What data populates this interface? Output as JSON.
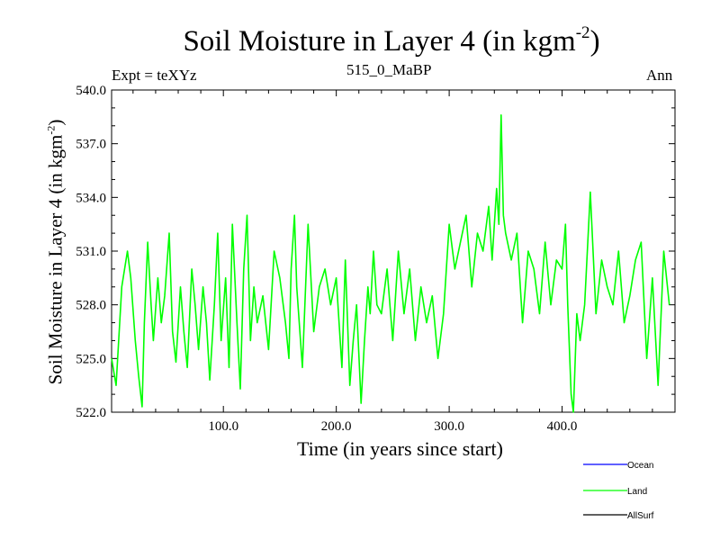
{
  "header": {
    "title_main": "Soil Moisture in Layer 4 (in kgm",
    "title_sup": "-2",
    "title_close": ")",
    "expt": "Expt = teXYz",
    "subtitle": "515_0_MaBP",
    "season": "Ann"
  },
  "chart_data": {
    "type": "line",
    "title": "Soil Moisture in Layer 4 (in kgm-2)",
    "xlabel": "Time (in years since start)",
    "ylabel": "Soil Moisture in Layer 4 (in kgm-2)",
    "xlim": [
      1,
      500
    ],
    "ylim": [
      522.0,
      540.0
    ],
    "x_ticks": [
      100,
      200,
      300,
      400
    ],
    "x_tick_labels": [
      "100.0",
      "200.0",
      "300.0",
      "400.0"
    ],
    "y_ticks": [
      522,
      525,
      528,
      531,
      534,
      537,
      540
    ],
    "y_tick_labels": [
      "522.0",
      "525.0",
      "528.0",
      "531.0",
      "534.0",
      "537.0",
      "540.0"
    ],
    "grid": false,
    "legend_position": "bottom-right, below plot",
    "series": [
      {
        "name": "Ocean",
        "color": "#0000ff",
        "x": [],
        "values": []
      },
      {
        "name": "Land",
        "color": "#00ff00",
        "x": [
          1,
          5,
          10,
          15,
          18,
          22,
          25,
          28,
          30,
          33,
          36,
          38,
          42,
          45,
          48,
          52,
          55,
          58,
          62,
          65,
          68,
          72,
          75,
          78,
          82,
          85,
          88,
          92,
          95,
          98,
          102,
          105,
          108,
          112,
          115,
          118,
          121,
          124,
          127,
          130,
          135,
          140,
          145,
          150,
          155,
          158,
          160,
          163,
          165,
          170,
          175,
          180,
          185,
          190,
          195,
          200,
          205,
          208,
          212,
          215,
          218,
          222,
          225,
          228,
          230,
          233,
          236,
          240,
          245,
          250,
          255,
          260,
          265,
          270,
          275,
          280,
          285,
          290,
          295,
          300,
          305,
          310,
          315,
          320,
          325,
          330,
          335,
          338,
          342,
          344,
          346,
          348,
          350,
          355,
          360,
          365,
          370,
          375,
          380,
          385,
          390,
          395,
          400,
          403,
          405,
          408,
          410,
          413,
          416,
          420,
          425,
          430,
          435,
          440,
          445,
          450,
          455,
          460,
          465,
          470,
          475,
          480,
          485,
          490,
          495
        ],
        "values": [
          525.0,
          523.5,
          529.0,
          531.0,
          529.5,
          526.0,
          524.0,
          522.3,
          527.0,
          531.5,
          528.0,
          526.0,
          529.5,
          527.0,
          528.5,
          532.0,
          526.5,
          524.8,
          529.0,
          526.5,
          524.5,
          530.0,
          528.0,
          525.5,
          529.0,
          527.0,
          523.8,
          528.0,
          532.0,
          526.0,
          529.5,
          524.5,
          532.5,
          527.0,
          523.3,
          530.0,
          533.0,
          526.0,
          529.0,
          527.0,
          528.5,
          525.5,
          531.0,
          529.5,
          527.0,
          525.0,
          530.0,
          533.0,
          529.0,
          524.5,
          532.5,
          526.5,
          529.0,
          530.0,
          528.0,
          529.5,
          524.5,
          530.5,
          523.5,
          526.0,
          528.0,
          522.5,
          526.0,
          529.0,
          527.5,
          531.0,
          528.0,
          527.5,
          530.0,
          526.0,
          531.0,
          527.5,
          530.0,
          526.0,
          529.0,
          527.0,
          528.5,
          525.0,
          527.5,
          532.5,
          530.0,
          531.5,
          533.0,
          529.0,
          532.0,
          531.0,
          533.5,
          530.5,
          534.5,
          532.5,
          538.6,
          533.0,
          532.0,
          530.5,
          532.0,
          527.0,
          531.0,
          530.0,
          527.5,
          531.5,
          528.0,
          530.5,
          530.0,
          532.5,
          528.0,
          523.0,
          521.7,
          527.5,
          526.0,
          528.0,
          534.3,
          527.5,
          530.5,
          529.0,
          528.0,
          531.0,
          527.0,
          528.5,
          530.5,
          531.5,
          525.0,
          529.5,
          523.5,
          531.0,
          528.0
        ]
      },
      {
        "name": "AllSurf",
        "color": "#000000",
        "x": [],
        "values": []
      }
    ]
  }
}
